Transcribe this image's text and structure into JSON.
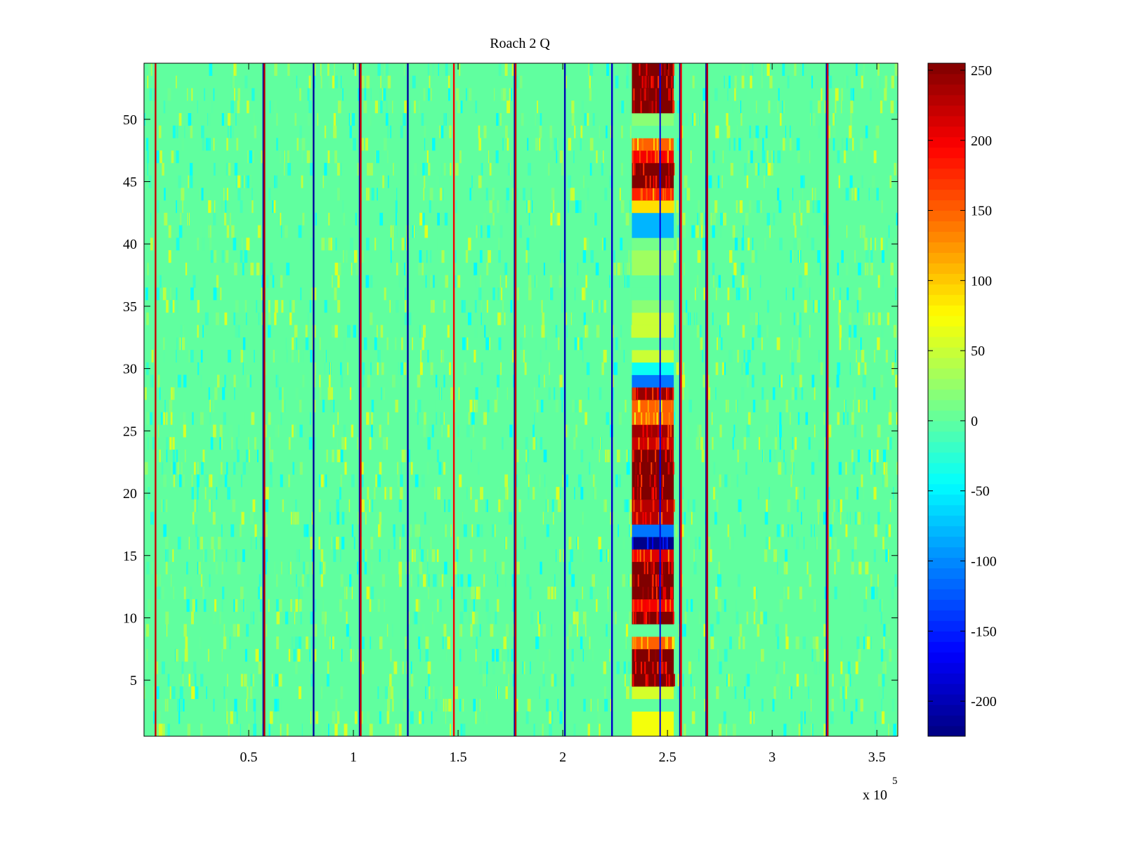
{
  "chart_data": {
    "type": "heatmap",
    "title": "Roach 2 Q",
    "xlabel": "",
    "ylabel": "",
    "x_multiplier_label": "x 10",
    "x_multiplier_exponent": "5",
    "xlim": [
      0,
      3.6
    ],
    "ylim": [
      0.5,
      54.5
    ],
    "x_ticks": [
      0.5,
      1,
      1.5,
      2,
      2.5,
      3,
      3.5
    ],
    "x_tick_labels": [
      "0.5",
      "1",
      "1.5",
      "2",
      "2.5",
      "3",
      "3.5"
    ],
    "y_ticks": [
      5,
      10,
      15,
      20,
      25,
      30,
      35,
      40,
      45,
      50
    ],
    "y_tick_labels": [
      "5",
      "10",
      "15",
      "20",
      "25",
      "30",
      "35",
      "40",
      "45",
      "50"
    ],
    "rows": 54,
    "colormap": "jet",
    "colorbar": {
      "range": [
        -225,
        255
      ],
      "ticks": [
        -200,
        -150,
        -100,
        -50,
        0,
        50,
        100,
        150,
        200,
        250
      ],
      "tick_labels": [
        "-200",
        "-150",
        "-100",
        "-50",
        "0",
        "50",
        "100",
        "150",
        "200",
        "250"
      ]
    },
    "background_value": 0,
    "vertical_stripes": [
      {
        "x": 0.055,
        "value": 220
      },
      {
        "x": 0.57,
        "value": -200
      },
      {
        "x": 0.575,
        "value": 230
      },
      {
        "x": 0.81,
        "value": -210
      },
      {
        "x": 1.03,
        "value": -200
      },
      {
        "x": 1.035,
        "value": 220
      },
      {
        "x": 1.26,
        "value": -210
      },
      {
        "x": 1.48,
        "value": 200
      },
      {
        "x": 1.77,
        "value": -200
      },
      {
        "x": 1.775,
        "value": 220
      },
      {
        "x": 2.01,
        "value": -200
      },
      {
        "x": 2.235,
        "value": -190
      },
      {
        "x": 2.56,
        "value": -200
      },
      {
        "x": 2.565,
        "value": 200
      },
      {
        "x": 2.685,
        "value": -200
      },
      {
        "x": 2.69,
        "value": 230
      },
      {
        "x": 3.26,
        "value": -200
      },
      {
        "x": 3.265,
        "value": 220
      }
    ],
    "burst_region": {
      "x_start": 2.33,
      "x_end": 2.53,
      "x_line": 2.465
    },
    "burst_rows": [
      {
        "rows": [
          1,
          2
        ],
        "value": 70
      },
      {
        "rows": [
          3
        ],
        "value": 0
      },
      {
        "rows": [
          4
        ],
        "value": 55
      },
      {
        "rows": [
          5,
          6,
          7
        ],
        "value": 255
      },
      {
        "rows": [
          8
        ],
        "value": 150
      },
      {
        "rows": [
          9
        ],
        "value": 0
      },
      {
        "rows": [
          10
        ],
        "value": 255
      },
      {
        "rows": [
          11
        ],
        "value": 200
      },
      {
        "rows": [
          12,
          13,
          14
        ],
        "value": 255
      },
      {
        "rows": [
          15
        ],
        "value": 210
      },
      {
        "rows": [
          16
        ],
        "value": -220
      },
      {
        "rows": [
          17
        ],
        "value": -110
      },
      {
        "rows": [
          18,
          19
        ],
        "value": 230
      },
      {
        "rows": [
          20,
          21,
          22,
          23
        ],
        "value": 255
      },
      {
        "rows": [
          24
        ],
        "value": 220
      },
      {
        "rows": [
          25
        ],
        "value": 240
      },
      {
        "rows": [
          26,
          27
        ],
        "value": 150
      },
      {
        "rows": [
          28
        ],
        "value": 245
      },
      {
        "rows": [
          29
        ],
        "value": -110
      },
      {
        "rows": [
          30
        ],
        "value": -40
      },
      {
        "rows": [
          31
        ],
        "value": 50
      },
      {
        "rows": [
          32
        ],
        "value": 0
      },
      {
        "rows": [
          33,
          34
        ],
        "value": 50
      },
      {
        "rows": [
          35
        ],
        "value": 20
      },
      {
        "rows": [
          36,
          37
        ],
        "value": 0
      },
      {
        "rows": [
          38,
          39
        ],
        "value": 30
      },
      {
        "rows": [
          40
        ],
        "value": 10
      },
      {
        "rows": [
          41,
          42
        ],
        "value": -80
      },
      {
        "rows": [
          43
        ],
        "value": 90
      },
      {
        "rows": [
          44
        ],
        "value": 180
      },
      {
        "rows": [
          45,
          46
        ],
        "value": 255
      },
      {
        "rows": [
          47
        ],
        "value": 200
      },
      {
        "rows": [
          48
        ],
        "value": 150
      },
      {
        "rows": [
          49
        ],
        "value": 0
      },
      {
        "rows": [
          50
        ],
        "value": 20
      },
      {
        "rows": [
          51,
          52,
          53,
          54
        ],
        "value": 255
      }
    ]
  }
}
